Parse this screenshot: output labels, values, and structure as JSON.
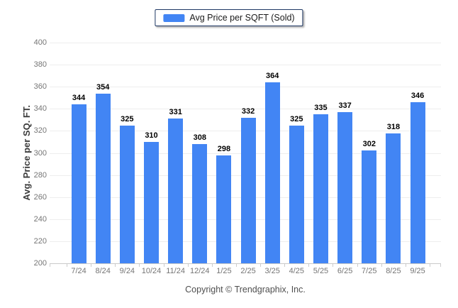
{
  "legend": {
    "label": "Avg Price per SQFT (Sold)"
  },
  "footer": {
    "copyright": "Copyright © Trendgraphix, Inc."
  },
  "colors": {
    "bar": "#4285F4",
    "legend_border": "#1F3864",
    "grid_line": "#EDEDED",
    "axis_line": "#C9C9C9",
    "tick_label": "#757575",
    "value_label": "#000000"
  },
  "chart_data": {
    "type": "bar",
    "title": "",
    "xlabel": "",
    "ylabel": "Avg. Price per SQ. FT.",
    "series_name": "Avg Price per SQFT (Sold)",
    "categories": [
      "7/24",
      "8/24",
      "9/24",
      "10/24",
      "11/24",
      "12/24",
      "1/25",
      "2/25",
      "3/25",
      "4/25",
      "5/25",
      "6/25",
      "7/25",
      "8/25",
      "9/25"
    ],
    "values": [
      344,
      354,
      325,
      310,
      331,
      308,
      298,
      332,
      364,
      325,
      335,
      337,
      302,
      318,
      346
    ],
    "ylim": [
      200,
      400
    ],
    "yticks": [
      200,
      220,
      240,
      260,
      280,
      300,
      320,
      340,
      360,
      380,
      400
    ],
    "grid": "horizontal",
    "legend_position": "top-center",
    "value_labels_shown": true
  }
}
